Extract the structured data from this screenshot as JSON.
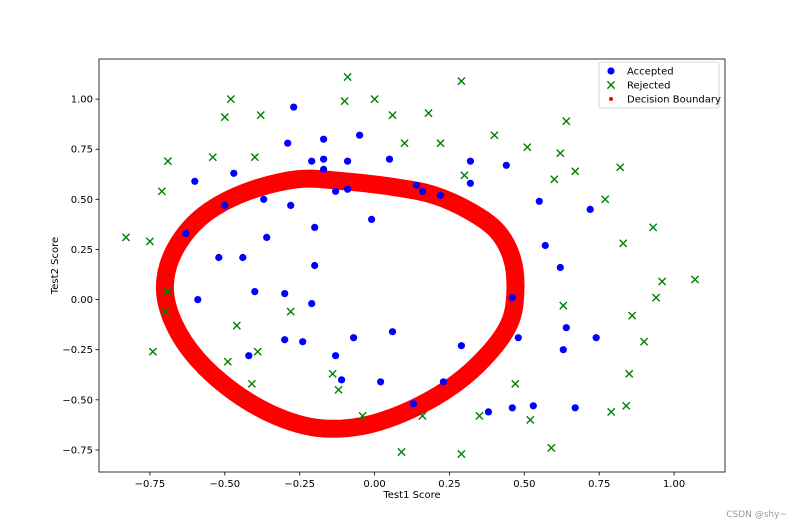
{
  "chart_data": {
    "type": "scatter",
    "xlabel": "Test1 Score",
    "ylabel": "Test2 Score",
    "xlim": [
      -0.92,
      1.17
    ],
    "ylim": [
      -0.86,
      1.2
    ],
    "xticks": [
      -0.75,
      -0.5,
      -0.25,
      0.0,
      0.25,
      0.5,
      0.75,
      1.0
    ],
    "xtick_labels": [
      "−0.75",
      "−0.50",
      "−0.25",
      "0.00",
      "0.25",
      "0.50",
      "0.75",
      "1.00"
    ],
    "yticks": [
      -0.75,
      -0.5,
      -0.25,
      0.0,
      0.25,
      0.5,
      0.75,
      1.0
    ],
    "ytick_labels": [
      "−0.75",
      "−0.50",
      "−0.25",
      "0.00",
      "0.25",
      "0.50",
      "0.75",
      "1.00"
    ],
    "grid": false,
    "legend_position": "top-right",
    "series": [
      {
        "name": "Accepted",
        "marker": "circle",
        "color": "#0000ff",
        "points": [
          [
            -0.27,
            0.96
          ],
          [
            -0.29,
            0.78
          ],
          [
            -0.17,
            0.8
          ],
          [
            -0.05,
            0.82
          ],
          [
            -0.21,
            0.69
          ],
          [
            -0.17,
            0.7
          ],
          [
            -0.09,
            0.69
          ],
          [
            0.05,
            0.7
          ],
          [
            0.32,
            0.69
          ],
          [
            0.44,
            0.67
          ],
          [
            -0.47,
            0.63
          ],
          [
            -0.6,
            0.59
          ],
          [
            -0.17,
            0.65
          ],
          [
            0.14,
            0.57
          ],
          [
            0.32,
            0.58
          ],
          [
            -0.13,
            0.54
          ],
          [
            -0.09,
            0.55
          ],
          [
            0.16,
            0.54
          ],
          [
            0.22,
            0.52
          ],
          [
            0.55,
            0.49
          ],
          [
            -0.37,
            0.5
          ],
          [
            -0.28,
            0.47
          ],
          [
            -0.5,
            0.47
          ],
          [
            0.72,
            0.45
          ],
          [
            -0.01,
            0.4
          ],
          [
            -0.2,
            0.36
          ],
          [
            -0.63,
            0.33
          ],
          [
            -0.36,
            0.31
          ],
          [
            0.57,
            0.27
          ],
          [
            -0.52,
            0.21
          ],
          [
            -0.44,
            0.21
          ],
          [
            -0.2,
            0.17
          ],
          [
            0.62,
            0.16
          ],
          [
            -0.4,
            0.04
          ],
          [
            -0.3,
            0.03
          ],
          [
            -0.59,
            0.0
          ],
          [
            0.46,
            0.01
          ],
          [
            -0.21,
            -0.02
          ],
          [
            0.06,
            -0.16
          ],
          [
            -0.07,
            -0.19
          ],
          [
            -0.3,
            -0.2
          ],
          [
            -0.24,
            -0.21
          ],
          [
            0.29,
            -0.23
          ],
          [
            0.48,
            -0.19
          ],
          [
            0.64,
            -0.14
          ],
          [
            0.74,
            -0.19
          ],
          [
            0.63,
            -0.25
          ],
          [
            -0.42,
            -0.28
          ],
          [
            -0.13,
            -0.28
          ],
          [
            -0.11,
            -0.4
          ],
          [
            0.02,
            -0.41
          ],
          [
            0.23,
            -0.41
          ],
          [
            0.13,
            -0.52
          ],
          [
            0.38,
            -0.56
          ],
          [
            0.46,
            -0.54
          ],
          [
            0.53,
            -0.53
          ],
          [
            0.67,
            -0.54
          ]
        ]
      },
      {
        "name": "Rejected",
        "marker": "x",
        "color": "#008000",
        "points": [
          [
            -0.09,
            1.11
          ],
          [
            0.29,
            1.09
          ],
          [
            -0.48,
            1.0
          ],
          [
            -0.1,
            0.99
          ],
          [
            0.0,
            1.0
          ],
          [
            -0.5,
            0.91
          ],
          [
            -0.38,
            0.92
          ],
          [
            0.06,
            0.92
          ],
          [
            0.18,
            0.93
          ],
          [
            0.64,
            0.89
          ],
          [
            0.4,
            0.82
          ],
          [
            0.1,
            0.78
          ],
          [
            0.22,
            0.78
          ],
          [
            0.51,
            0.76
          ],
          [
            0.62,
            0.73
          ],
          [
            -0.69,
            0.69
          ],
          [
            -0.54,
            0.71
          ],
          [
            -0.4,
            0.71
          ],
          [
            0.82,
            0.66
          ],
          [
            0.67,
            0.64
          ],
          [
            0.3,
            0.62
          ],
          [
            0.6,
            0.6
          ],
          [
            -0.71,
            0.54
          ],
          [
            0.77,
            0.5
          ],
          [
            0.93,
            0.36
          ],
          [
            -0.83,
            0.31
          ],
          [
            -0.75,
            0.29
          ],
          [
            0.83,
            0.28
          ],
          [
            0.96,
            0.09
          ],
          [
            1.07,
            0.1
          ],
          [
            -0.69,
            0.04
          ],
          [
            0.94,
            0.01
          ],
          [
            0.63,
            -0.03
          ],
          [
            -0.7,
            -0.06
          ],
          [
            -0.28,
            -0.06
          ],
          [
            0.86,
            -0.08
          ],
          [
            -0.46,
            -0.13
          ],
          [
            0.9,
            -0.21
          ],
          [
            -0.74,
            -0.26
          ],
          [
            -0.39,
            -0.26
          ],
          [
            -0.49,
            -0.31
          ],
          [
            -0.14,
            -0.37
          ],
          [
            0.85,
            -0.37
          ],
          [
            -0.41,
            -0.42
          ],
          [
            -0.12,
            -0.45
          ],
          [
            0.47,
            -0.42
          ],
          [
            0.84,
            -0.53
          ],
          [
            0.79,
            -0.56
          ],
          [
            -0.04,
            -0.58
          ],
          [
            0.16,
            -0.58
          ],
          [
            0.35,
            -0.58
          ],
          [
            0.52,
            -0.6
          ],
          [
            0.09,
            -0.76
          ],
          [
            0.29,
            -0.77
          ],
          [
            0.59,
            -0.74
          ]
        ]
      },
      {
        "name": "Decision Boundary",
        "marker": "dot",
        "color": "#ff0000",
        "type": "closed_curve",
        "points": [
          [
            -0.26,
            0.6
          ],
          [
            -0.1,
            0.59
          ],
          [
            0.07,
            0.56
          ],
          [
            0.2,
            0.52
          ],
          [
            0.32,
            0.44
          ],
          [
            0.41,
            0.34
          ],
          [
            0.46,
            0.2
          ],
          [
            0.47,
            0.03
          ],
          [
            0.45,
            -0.12
          ],
          [
            0.38,
            -0.27
          ],
          [
            0.27,
            -0.42
          ],
          [
            0.12,
            -0.55
          ],
          [
            -0.04,
            -0.63
          ],
          [
            -0.19,
            -0.64
          ],
          [
            -0.33,
            -0.58
          ],
          [
            -0.47,
            -0.46
          ],
          [
            -0.59,
            -0.3
          ],
          [
            -0.67,
            -0.12
          ],
          [
            -0.7,
            0.06
          ],
          [
            -0.67,
            0.24
          ],
          [
            -0.58,
            0.41
          ],
          [
            -0.44,
            0.53
          ]
        ]
      }
    ]
  },
  "watermark": "CSDN @shy~"
}
